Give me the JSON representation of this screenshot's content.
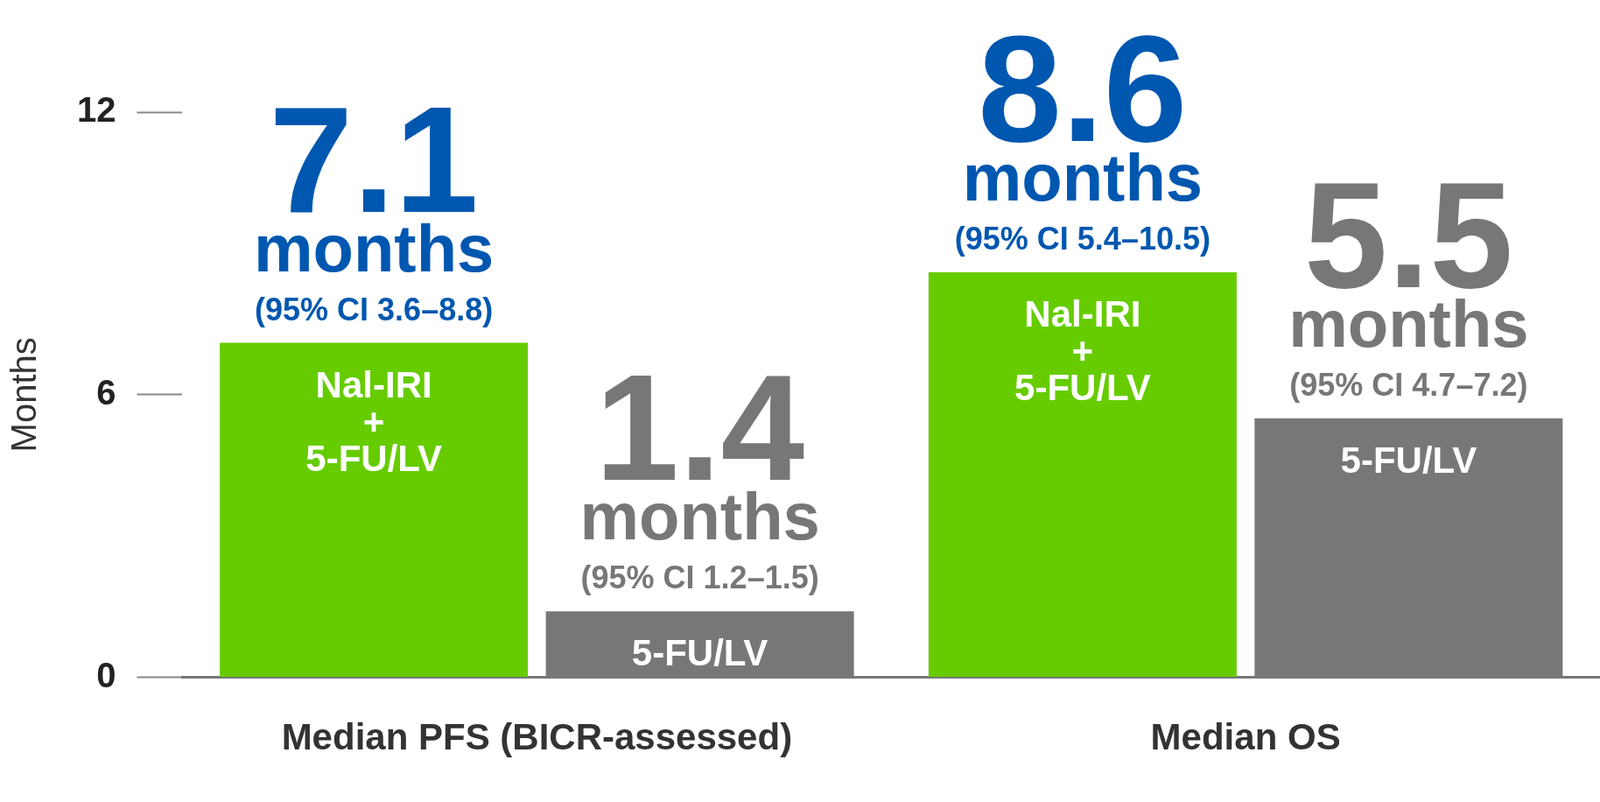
{
  "chart_data": {
    "type": "bar",
    "categories": [
      "Median PFS (BICR-assessed)",
      "Median OS"
    ],
    "y_label": "Months",
    "ylim": [
      0,
      12
    ],
    "yticks": [
      0,
      6,
      12
    ],
    "grid": false,
    "data_labels": true,
    "data_label_unit": "months",
    "series": [
      {
        "name": "Nal-IRI + 5-FU/LV",
        "color": "#66cc00",
        "values": [
          7.1,
          8.6
        ],
        "ci_labels": [
          "(95% CI 3.6–8.8)",
          "(95% CI 5.4–10.5)"
        ]
      },
      {
        "name": "5-FU/LV",
        "color": "#777777",
        "values": [
          1.4,
          5.5
        ],
        "ci_labels": [
          "(95% CI 1.2–1.5)",
          "(95% CI 4.7–7.2)"
        ]
      }
    ]
  }
}
